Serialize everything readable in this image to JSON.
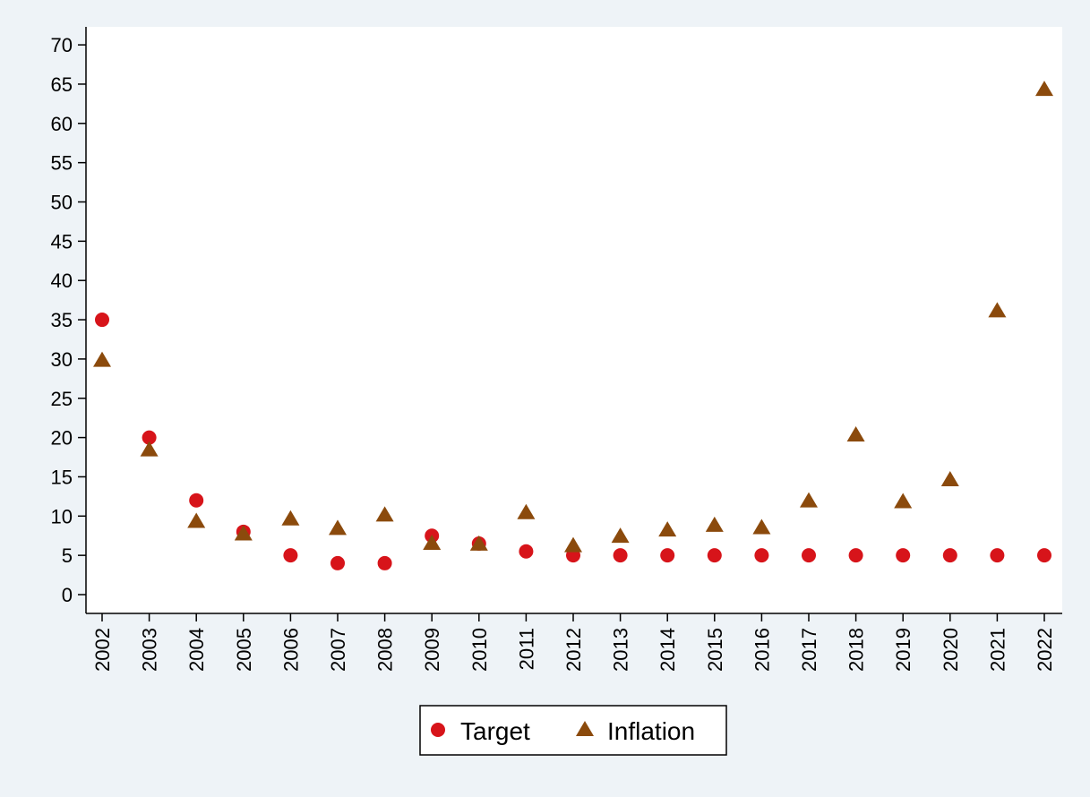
{
  "chart_data": {
    "type": "scatter",
    "title": "",
    "xlabel": "",
    "ylabel": "",
    "categories": [
      "2002",
      "2003",
      "2004",
      "2005",
      "2006",
      "2007",
      "2008",
      "2009",
      "2010",
      "2011",
      "2012",
      "2013",
      "2014",
      "2015",
      "2016",
      "2017",
      "2018",
      "2019",
      "2020",
      "2021",
      "2022"
    ],
    "yticks": [
      "0",
      "5",
      "10",
      "15",
      "20",
      "25",
      "30",
      "35",
      "40",
      "45",
      "50",
      "55",
      "60",
      "65",
      "70"
    ],
    "ylim": [
      -2,
      72
    ],
    "grid": false,
    "legend_position": "bottom",
    "colors": {
      "background": "#eef3f7",
      "plot_background": "#ffffff",
      "target": "#d7141a",
      "inflation": "#8b4a0c",
      "axis": "#000000"
    },
    "series": [
      {
        "name": "Target",
        "marker": "circle",
        "values": [
          35,
          20,
          12,
          8,
          5,
          4,
          4,
          7.5,
          6.5,
          5.5,
          5,
          5,
          5,
          5,
          5,
          5,
          5,
          5,
          5,
          5,
          5
        ]
      },
      {
        "name": "Inflation",
        "marker": "triangle",
        "values": [
          29.8,
          18.4,
          9.3,
          7.7,
          9.6,
          8.4,
          10.1,
          6.5,
          6.4,
          10.4,
          6.2,
          7.4,
          8.2,
          8.8,
          8.5,
          11.9,
          20.3,
          11.8,
          14.6,
          36.1,
          64.3
        ]
      }
    ]
  }
}
